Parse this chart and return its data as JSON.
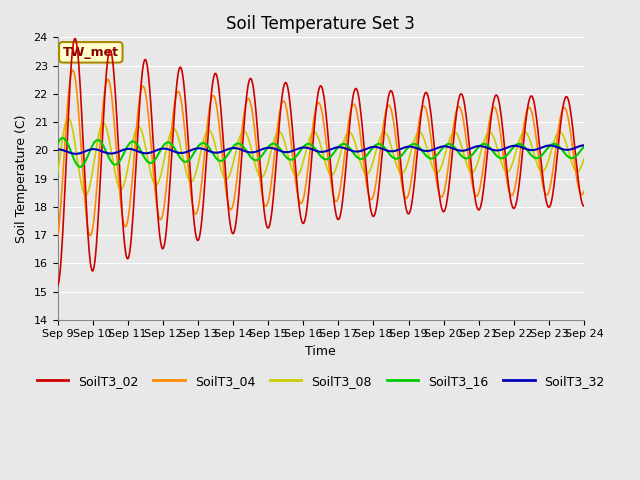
{
  "title": "Soil Temperature Set 3",
  "xlabel": "Time",
  "ylabel": "Soil Temperature (C)",
  "ylim": [
    14.0,
    24.0
  ],
  "yticks": [
    14.0,
    15.0,
    16.0,
    17.0,
    18.0,
    19.0,
    20.0,
    21.0,
    22.0,
    23.0,
    24.0
  ],
  "series": {
    "SoilT3_02": {
      "color": "#cc0000",
      "linewidth": 1.2
    },
    "SoilT3_04": {
      "color": "#ff8800",
      "linewidth": 1.2
    },
    "SoilT3_08": {
      "color": "#cccc00",
      "linewidth": 1.2
    },
    "SoilT3_16": {
      "color": "#00cc00",
      "linewidth": 1.5
    },
    "SoilT3_32": {
      "color": "#0000bb",
      "linewidth": 1.5
    }
  },
  "xtick_labels": [
    "Sep 9",
    "Sep 10",
    "Sep 11",
    "Sep 12",
    "Sep 13",
    "Sep 14",
    "Sep 15",
    "Sep 16",
    "Sep 17",
    "Sep 18",
    "Sep 19",
    "Sep 20",
    "Sep 21",
    "Sep 22",
    "Sep 23",
    "Sep 24"
  ],
  "annotation_text": "TW_met",
  "annotation_color": "#880000",
  "annotation_bg": "#ffffcc",
  "annotation_border": "#aa8800",
  "background_color": "#e8e8e8",
  "plot_bg": "#e8e8e8",
  "grid_color": "#ffffff",
  "title_fontsize": 12,
  "axis_fontsize": 9,
  "tick_fontsize": 8,
  "legend_fontsize": 9
}
